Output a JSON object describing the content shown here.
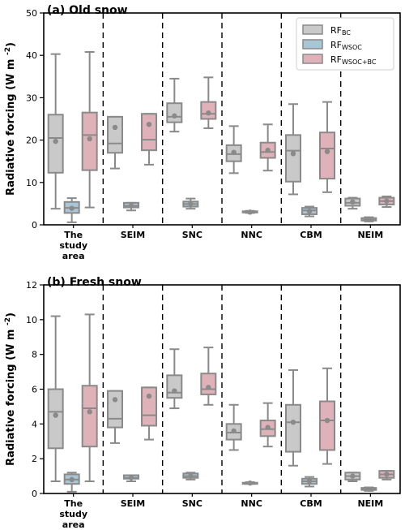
{
  "chart_data": [
    {
      "type": "box",
      "title": "(a) Old snow",
      "ylabel": "Radiative forcing (W m",
      "ylabel_sup": "-2",
      "ylabel_end": ")",
      "ylim": [
        0,
        50
      ],
      "yticks": [
        0,
        10,
        20,
        30,
        40,
        50
      ],
      "categories": [
        "The study area",
        "SEIM",
        "SNC",
        "NNC",
        "CBM",
        "NEIM"
      ],
      "category_lines": [
        [
          "The",
          "study",
          "area"
        ],
        [
          "SEIM"
        ],
        [
          "SNC"
        ],
        [
          "NNC"
        ],
        [
          "CBM"
        ],
        [
          "NEIM"
        ]
      ],
      "legend": {
        "placement": "top-right",
        "items": [
          {
            "main": "RF",
            "sub": "BC"
          },
          {
            "main": "RF",
            "sub": "WSOC"
          },
          {
            "main": "RF",
            "sub": "WSOC+BC"
          }
        ]
      },
      "series": [
        {
          "name": "RF BC",
          "color": "#c9c9c9",
          "boxes": [
            {
              "whislo": 3.8,
              "q1": 12.3,
              "med": 20.5,
              "q3": 26.0,
              "whishi": 40.3,
              "mean": 19.7
            },
            {
              "whislo": 13.3,
              "q1": 17.0,
              "med": 19.2,
              "q3": 25.5,
              "whishi": 25.5,
              "mean": 23.0
            },
            {
              "whislo": 22.0,
              "q1": 24.2,
              "med": 25.5,
              "q3": 28.7,
              "whishi": 34.5,
              "mean": 25.7
            },
            {
              "whislo": 12.2,
              "q1": 15.0,
              "med": 16.7,
              "q3": 18.8,
              "whishi": 23.3,
              "mean": 17.1
            },
            {
              "whislo": 7.2,
              "q1": 10.2,
              "med": 17.5,
              "q3": 21.2,
              "whishi": 28.5,
              "mean": 16.8
            },
            {
              "whislo": 3.8,
              "q1": 4.5,
              "med": 5.2,
              "q3": 6.2,
              "whishi": 6.4,
              "mean": 5.4
            }
          ]
        },
        {
          "name": "RF WSOC",
          "color": "#a9c6d6",
          "boxes": [
            {
              "whislo": 0.6,
              "q1": 2.8,
              "med": 4.0,
              "q3": 5.4,
              "whishi": 6.3,
              "mean": 3.9
            },
            {
              "whislo": 3.4,
              "q1": 4.1,
              "med": 4.5,
              "q3": 5.2,
              "whishi": 5.2,
              "mean": 4.5
            },
            {
              "whislo": 3.8,
              "q1": 4.3,
              "med": 4.9,
              "q3": 5.5,
              "whishi": 6.2,
              "mean": 5.0
            },
            {
              "whislo": 2.8,
              "q1": 2.9,
              "med": 3.0,
              "q3": 3.2,
              "whishi": 3.3,
              "mean": 3.0
            },
            {
              "whislo": 2.0,
              "q1": 2.5,
              "med": 3.4,
              "q3": 4.0,
              "whishi": 4.3,
              "mean": 3.2
            },
            {
              "whislo": 0.8,
              "q1": 1.0,
              "med": 1.2,
              "q3": 1.6,
              "whishi": 1.8,
              "mean": 1.2
            }
          ]
        },
        {
          "name": "RF WSOC+BC",
          "color": "#dfb1b8",
          "boxes": [
            {
              "whislo": 4.1,
              "q1": 12.9,
              "med": 21.2,
              "q3": 26.5,
              "whishi": 40.8,
              "mean": 20.3
            },
            {
              "whislo": 14.2,
              "q1": 17.6,
              "med": 20.1,
              "q3": 26.2,
              "whishi": 26.2,
              "mean": 23.7
            },
            {
              "whislo": 22.8,
              "q1": 25.0,
              "med": 26.2,
              "q3": 29.0,
              "whishi": 34.8,
              "mean": 26.4
            },
            {
              "whislo": 12.8,
              "q1": 15.8,
              "med": 17.2,
              "q3": 19.4,
              "whishi": 23.7,
              "mean": 17.6
            },
            {
              "whislo": 7.7,
              "q1": 10.9,
              "med": 18.0,
              "q3": 21.8,
              "whishi": 29.0,
              "mean": 17.3
            },
            {
              "whislo": 4.2,
              "q1": 4.8,
              "med": 5.6,
              "q3": 6.4,
              "whishi": 6.7,
              "mean": 5.6
            }
          ]
        }
      ]
    },
    {
      "type": "box",
      "title": "(b) Fresh snow",
      "ylabel": "Radiative forcing (W m",
      "ylabel_sup": "-2",
      "ylabel_end": ")",
      "ylim": [
        0,
        12
      ],
      "yticks": [
        0,
        2,
        4,
        6,
        8,
        10,
        12
      ],
      "categories": [
        "The study area",
        "SEIM",
        "SNC",
        "NNC",
        "CBM",
        "NEIM"
      ],
      "category_lines": [
        [
          "The",
          "study",
          "area"
        ],
        [
          "SEIM"
        ],
        [
          "SNC"
        ],
        [
          "NNC"
        ],
        [
          "CBM"
        ],
        [
          "NEIM"
        ]
      ],
      "series": [
        {
          "name": "RF BC",
          "color": "#c9c9c9",
          "boxes": [
            {
              "whislo": 0.7,
              "q1": 2.6,
              "med": 4.7,
              "q3": 6.0,
              "whishi": 10.2,
              "mean": 4.5
            },
            {
              "whislo": 2.9,
              "q1": 3.8,
              "med": 4.3,
              "q3": 5.9,
              "whishi": 5.9,
              "mean": 5.4
            },
            {
              "whislo": 4.9,
              "q1": 5.5,
              "med": 5.8,
              "q3": 6.8,
              "whishi": 8.3,
              "mean": 5.9
            },
            {
              "whislo": 2.5,
              "q1": 3.1,
              "med": 3.5,
              "q3": 4.0,
              "whishi": 5.1,
              "mean": 3.6
            },
            {
              "whislo": 1.6,
              "q1": 2.4,
              "med": 4.1,
              "q3": 5.1,
              "whishi": 7.1,
              "mean": 4.1
            },
            {
              "whislo": 0.7,
              "q1": 0.8,
              "med": 1.0,
              "q3": 1.2,
              "whishi": 1.2,
              "mean": 1.0
            }
          ]
        },
        {
          "name": "RF WSOC",
          "color": "#a9c6d6",
          "boxes": [
            {
              "whislo": 0.1,
              "q1": 0.55,
              "med": 0.8,
              "q3": 1.1,
              "whishi": 1.2,
              "mean": 0.8
            },
            {
              "whislo": 0.7,
              "q1": 0.85,
              "med": 0.9,
              "q3": 1.05,
              "whishi": 1.05,
              "mean": 0.9
            },
            {
              "whislo": 0.8,
              "q1": 0.9,
              "med": 1.0,
              "q3": 1.15,
              "whishi": 1.2,
              "mean": 1.0
            },
            {
              "whislo": 0.55,
              "q1": 0.58,
              "med": 0.6,
              "q3": 0.62,
              "whishi": 0.65,
              "mean": 0.6
            },
            {
              "whislo": 0.4,
              "q1": 0.55,
              "med": 0.7,
              "q3": 0.85,
              "whishi": 0.95,
              "mean": 0.7
            },
            {
              "whislo": 0.15,
              "q1": 0.2,
              "med": 0.25,
              "q3": 0.32,
              "whishi": 0.35,
              "mean": 0.25
            }
          ]
        },
        {
          "name": "RF WSOC+BC",
          "color": "#dfb1b8",
          "boxes": [
            {
              "whislo": 0.7,
              "q1": 2.7,
              "med": 4.9,
              "q3": 6.2,
              "whishi": 10.3,
              "mean": 4.7
            },
            {
              "whislo": 3.1,
              "q1": 3.9,
              "med": 4.5,
              "q3": 6.1,
              "whishi": 6.1,
              "mean": 5.6
            },
            {
              "whislo": 5.1,
              "q1": 5.7,
              "med": 6.0,
              "q3": 6.9,
              "whishi": 8.4,
              "mean": 6.1
            },
            {
              "whislo": 2.7,
              "q1": 3.3,
              "med": 3.7,
              "q3": 4.2,
              "whishi": 5.2,
              "mean": 3.8
            },
            {
              "whislo": 1.7,
              "q1": 2.5,
              "med": 4.2,
              "q3": 5.3,
              "whishi": 7.2,
              "mean": 4.2
            },
            {
              "whislo": 0.8,
              "q1": 0.9,
              "med": 1.1,
              "q3": 1.3,
              "whishi": 1.3,
              "mean": 1.1
            }
          ]
        }
      ]
    }
  ]
}
